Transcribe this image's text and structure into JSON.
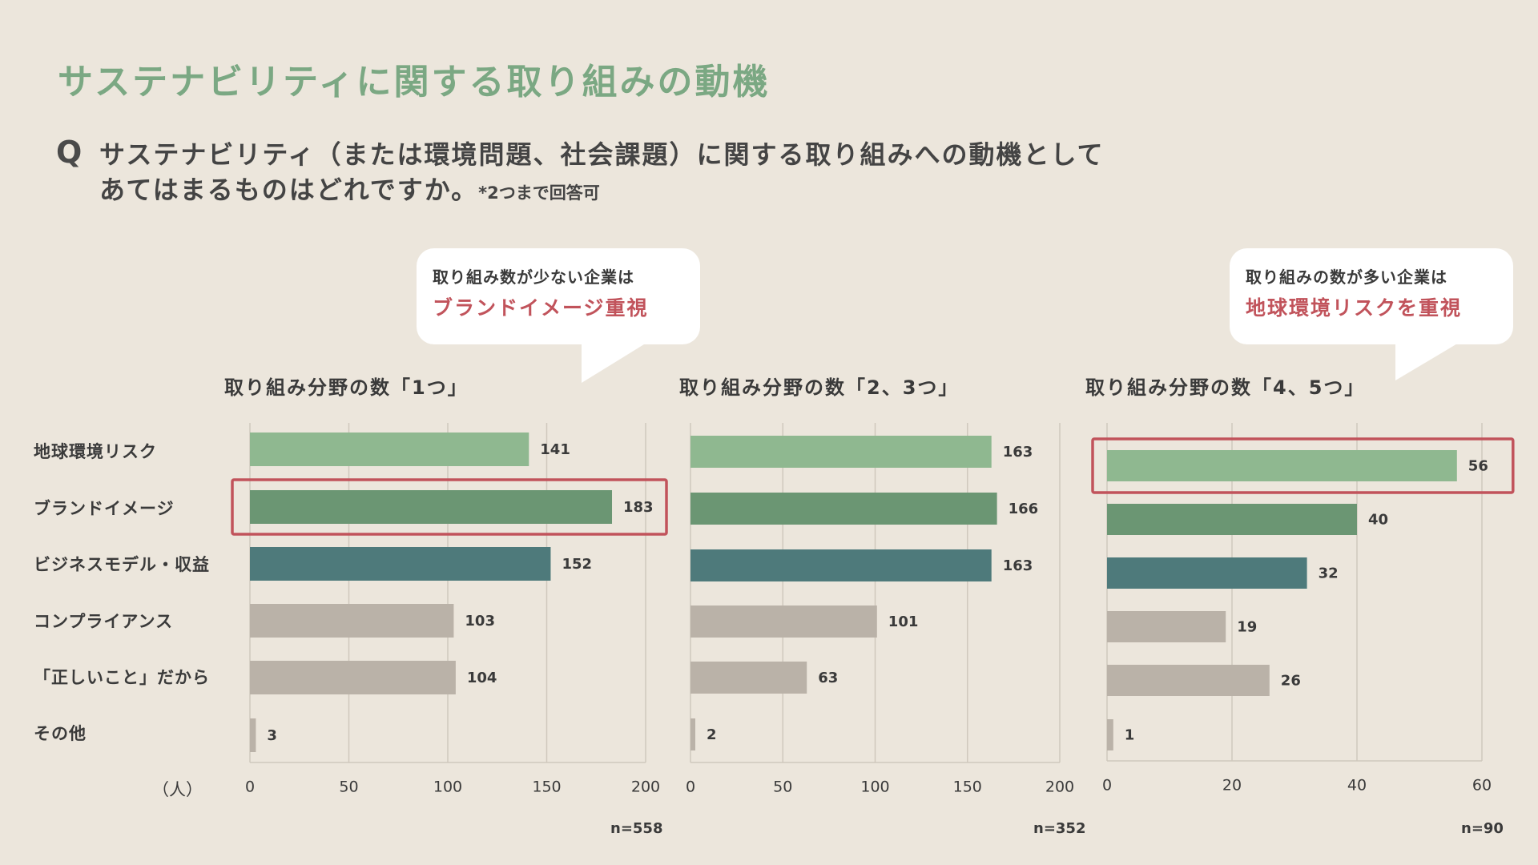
{
  "page": {
    "title": "サステナビリティに関する取り組みの動機",
    "question_mark": "Q",
    "question_line1": "サステナビリティ（または環境問題、社会課題）に関する取り組みへの動機として",
    "question_line2": "あてはまるものはどれですか。",
    "question_note": "*2つまで回答可",
    "unit_label": "（人）"
  },
  "bubbles": [
    {
      "line1": "取り組み数が少ない企業は",
      "line2": "ブランドイメージ重視",
      "accent": "#C1535B"
    },
    {
      "line1": "取り組みの数が多い企業は",
      "line2": "地球環境リスクを重視",
      "accent": "#C1535B"
    }
  ],
  "categories": [
    "地球環境リスク",
    "ブランドイメージ",
    "ビジネスモデル・収益",
    "コンプライアンス",
    "「正しいこと」だから",
    "その他"
  ],
  "colors": [
    "#8FB890",
    "#6B9673",
    "#4E7A7B",
    "#BAB2A8",
    "#BAB2A8",
    "#BAB2A8"
  ],
  "highlight_color": "#C1535B",
  "chart_data": [
    {
      "type": "bar",
      "title": "取り組み分野の数「1つ」",
      "values": [
        141,
        183,
        152,
        103,
        104,
        3
      ],
      "xlim": [
        0,
        200
      ],
      "ticks": [
        0,
        50,
        100,
        150,
        200
      ],
      "n": "n=558",
      "highlight_index": 1
    },
    {
      "type": "bar",
      "title": "取り組み分野の数「2、3つ」",
      "values": [
        163,
        166,
        163,
        101,
        63,
        2
      ],
      "xlim": [
        0,
        200
      ],
      "ticks": [
        0,
        50,
        100,
        150,
        200
      ],
      "n": "n=352",
      "highlight_index": null
    },
    {
      "type": "bar",
      "title": "取り組み分野の数「4、5つ」",
      "values": [
        56,
        40,
        32,
        19,
        26,
        1
      ],
      "xlim": [
        0,
        60
      ],
      "ticks": [
        0,
        20,
        40,
        60
      ],
      "n": "n=90",
      "highlight_index": 0
    }
  ]
}
